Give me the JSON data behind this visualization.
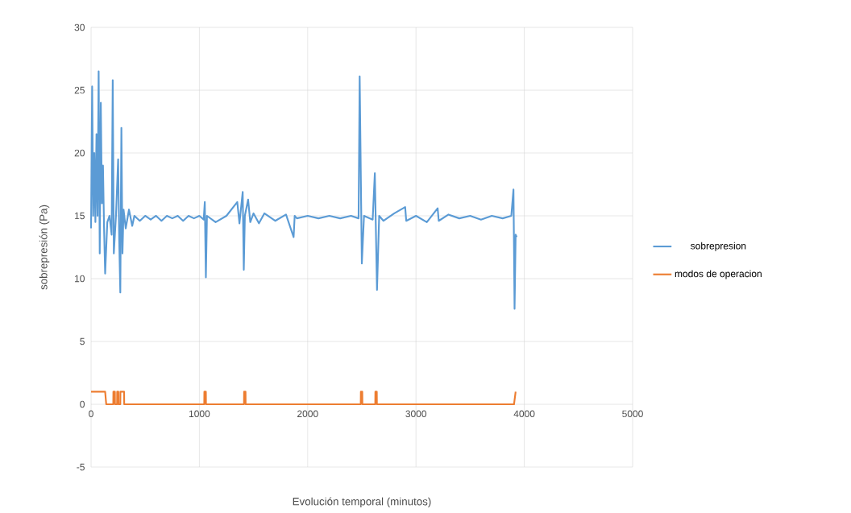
{
  "chart_data": {
    "type": "line",
    "xlabel": "Evolución temporal (minutos)",
    "ylabel": "sobrepresión (Pa)",
    "xlim": [
      0,
      5000
    ],
    "xticks": [
      0,
      1000,
      2000,
      3000,
      4000,
      5000
    ],
    "ylim": [
      -5,
      30
    ],
    "yticks": [
      -5,
      0,
      5,
      10,
      15,
      20,
      25,
      30
    ],
    "grid": true,
    "legend": "right",
    "marker": "none",
    "line_style": "solid",
    "series": [
      {
        "name": "sobrepresion",
        "color": "#5b9bd5",
        "x": [
          0,
          10,
          20,
          30,
          40,
          50,
          60,
          70,
          80,
          90,
          100,
          110,
          120,
          130,
          150,
          170,
          190,
          200,
          210,
          230,
          250,
          260,
          270,
          280,
          290,
          300,
          320,
          350,
          380,
          400,
          450,
          500,
          550,
          600,
          650,
          700,
          750,
          800,
          850,
          900,
          950,
          1000,
          1040,
          1050,
          1060,
          1070,
          1150,
          1250,
          1350,
          1370,
          1400,
          1410,
          1420,
          1450,
          1470,
          1500,
          1550,
          1600,
          1700,
          1800,
          1870,
          1880,
          1900,
          2000,
          2100,
          2200,
          2300,
          2400,
          2470,
          2480,
          2500,
          2520,
          2600,
          2620,
          2640,
          2660,
          2700,
          2800,
          2900,
          2910,
          3000,
          3100,
          3200,
          3210,
          3300,
          3400,
          3500,
          3600,
          3700,
          3800,
          3880,
          3900,
          3910,
          3920,
          3930
        ],
        "values": [
          14,
          25.3,
          15,
          20,
          14.5,
          21.5,
          15,
          26.5,
          12,
          24,
          16,
          19,
          14,
          10.4,
          14.5,
          15,
          13.5,
          25.8,
          12,
          15,
          19.5,
          13,
          8.9,
          22,
          12,
          15.5,
          14,
          15.5,
          14.2,
          15,
          14.6,
          15,
          14.7,
          15,
          14.6,
          15,
          14.8,
          15,
          14.6,
          15,
          14.8,
          15,
          14.7,
          16.1,
          10.1,
          15,
          14.5,
          15,
          16.1,
          14.4,
          16.9,
          10.7,
          15,
          16.3,
          14.5,
          15.2,
          14.4,
          15.2,
          14.6,
          15.1,
          13.3,
          15,
          14.8,
          15,
          14.8,
          15,
          14.8,
          15,
          14.8,
          26.1,
          11.2,
          15,
          14.7,
          18.4,
          9.1,
          15,
          14.6,
          15.2,
          15.7,
          14.6,
          15,
          14.5,
          15.6,
          14.6,
          15.1,
          14.8,
          15,
          14.7,
          15,
          14.8,
          15,
          17.1,
          7.6,
          13.5,
          13.3
        ]
      },
      {
        "name": "modos de operacion",
        "color": "#ed7d31",
        "x": [
          0,
          130,
          140,
          205,
          206,
          220,
          221,
          240,
          241,
          252,
          253,
          270,
          271,
          305,
          306,
          1045,
          1046,
          1060,
          1061,
          1412,
          1413,
          1426,
          1427,
          2490,
          2491,
          2504,
          2505,
          2624,
          2625,
          2638,
          2639,
          3905,
          3920
        ],
        "values": [
          1,
          1,
          0,
          0,
          1,
          1,
          0,
          0,
          1,
          1,
          0,
          0,
          1,
          1,
          0,
          0,
          1,
          1,
          0,
          0,
          1,
          1,
          0,
          0,
          1,
          1,
          0,
          0,
          1,
          1,
          0,
          0,
          1
        ]
      }
    ]
  }
}
